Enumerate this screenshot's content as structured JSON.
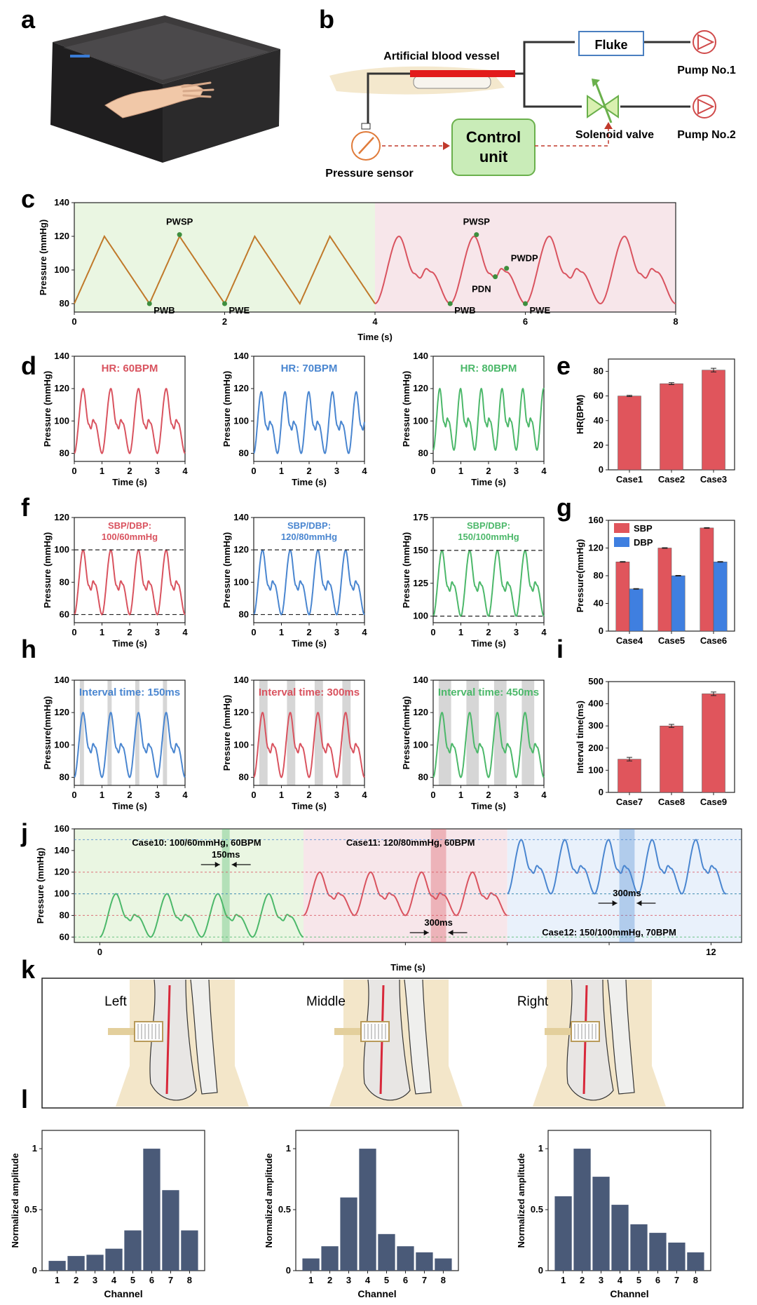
{
  "colors": {
    "red": "#d9535f",
    "blue": "#4a86d0",
    "green": "#4cb86a",
    "brown": "#c0792a",
    "bar_red": "#e0555c",
    "bar_blue": "#3f7fe0",
    "navy": "#4a5a78",
    "bg_green": "#eaf6e2",
    "bg_pink": "#f7e6ea",
    "bg_blue": "#e9f1fb",
    "bone": "#f1e2c0"
  },
  "panels": {
    "a": "a",
    "b": "b",
    "c": "c",
    "d": "d",
    "e": "e",
    "f": "f",
    "g": "g",
    "h": "h",
    "i": "i",
    "j": "j",
    "k": "k",
    "l": "l"
  },
  "schematic": {
    "vessel": "Artificial blood vessel",
    "fluke": "Fluke",
    "pump1": "Pump No.1",
    "pump2": "Pump No.2",
    "control1": "Control",
    "control2": "unit",
    "valve": "Solenoid valve",
    "sensor": "Pressure sensor"
  },
  "chart_data": [
    {
      "id": "c",
      "type": "line",
      "xlabel": "Time (s)",
      "ylabel": "Pressure (mmHg)",
      "xlim": [
        0,
        8
      ],
      "ylim": [
        75,
        140
      ],
      "xticks": [
        0,
        2,
        4,
        6,
        8
      ],
      "yticks": [
        80,
        100,
        120,
        140
      ],
      "series": [
        {
          "shape": "triangle",
          "x_start": 0,
          "x_end": 4,
          "period": 1,
          "min": 80,
          "max": 120
        },
        {
          "shape": "dicrotic",
          "x_start": 4,
          "x_end": 8,
          "period": 1,
          "min": 80,
          "max": 120
        }
      ],
      "annotations": [
        {
          "text": "PWSP",
          "x": 1.4,
          "y": 121
        },
        {
          "text": "PWB",
          "x": 1.0,
          "y": 80
        },
        {
          "text": "PWE",
          "x": 2.0,
          "y": 80
        },
        {
          "text": "PWSP",
          "x": 5.35,
          "y": 121
        },
        {
          "text": "PWB",
          "x": 5.0,
          "y": 80
        },
        {
          "text": "PDN",
          "x": 5.6,
          "y": 96
        },
        {
          "text": "PWDP",
          "x": 5.75,
          "y": 101
        },
        {
          "text": "PWE",
          "x": 6.0,
          "y": 80
        }
      ]
    },
    {
      "id": "d1",
      "type": "line",
      "title": "HR: 60BPM",
      "xlabel": "Time (s)",
      "ylabel": "Pressure (mmHg)",
      "xlim": [
        0,
        4
      ],
      "ylim": [
        75,
        140
      ],
      "xticks": [
        0,
        1,
        2,
        3,
        4
      ],
      "yticks": [
        80,
        100,
        120,
        140
      ],
      "series": [
        {
          "shape": "dicrotic",
          "period": 1,
          "min": 80,
          "max": 120
        }
      ]
    },
    {
      "id": "d2",
      "type": "line",
      "title": "HR: 70BPM",
      "xlabel": "Time (s)",
      "ylabel": "Pressure (mmHg)",
      "xlim": [
        0,
        4
      ],
      "ylim": [
        75,
        140
      ],
      "xticks": [
        0,
        1,
        2,
        3,
        4
      ],
      "yticks": [
        80,
        100,
        120,
        140
      ],
      "series": [
        {
          "shape": "dicrotic",
          "period": 0.857,
          "min": 80,
          "max": 118
        }
      ]
    },
    {
      "id": "d3",
      "type": "line",
      "title": "HR: 80BPM",
      "xlabel": "Time (s)",
      "ylabel": "Pressure (mmHg)",
      "xlim": [
        0,
        4
      ],
      "ylim": [
        75,
        140
      ],
      "xticks": [
        0,
        1,
        2,
        3,
        4
      ],
      "yticks": [
        80,
        100,
        120,
        140
      ],
      "series": [
        {
          "shape": "dicrotic",
          "period": 0.75,
          "min": 82,
          "max": 120
        }
      ]
    },
    {
      "id": "e",
      "type": "bar",
      "ylabel": "HR(BPM)",
      "categories": [
        "Case1",
        "Case2",
        "Case3"
      ],
      "series": [
        {
          "values": [
            60,
            70,
            81
          ],
          "errors": [
            0.5,
            0.8,
            1.5
          ]
        }
      ],
      "ylim": [
        0,
        90
      ],
      "yticks": [
        0,
        20,
        40,
        60,
        80
      ]
    },
    {
      "id": "f1",
      "type": "line",
      "title_lines": [
        "SBP/DBP:",
        "100/60mmHg"
      ],
      "xlabel": "Time (s)",
      "ylabel": "Pressure (mmHg)",
      "xlim": [
        0,
        4
      ],
      "ylim": [
        55,
        120
      ],
      "xticks": [
        0,
        1,
        2,
        3,
        4
      ],
      "yticks": [
        60,
        80,
        100,
        120
      ],
      "ref_lines": [
        100,
        60
      ],
      "series": [
        {
          "shape": "dicrotic",
          "period": 1,
          "min": 60,
          "max": 100
        }
      ]
    },
    {
      "id": "f2",
      "type": "line",
      "title_lines": [
        "SBP/DBP:",
        "120/80mmHg"
      ],
      "xlabel": "Time (s)",
      "ylabel": "Pressure (mmHg)",
      "xlim": [
        0,
        4
      ],
      "ylim": [
        75,
        140
      ],
      "xticks": [
        0,
        1,
        2,
        3,
        4
      ],
      "yticks": [
        80,
        100,
        120,
        140
      ],
      "ref_lines": [
        120,
        80
      ],
      "series": [
        {
          "shape": "dicrotic",
          "period": 1,
          "min": 80,
          "max": 120
        }
      ]
    },
    {
      "id": "f3",
      "type": "line",
      "title_lines": [
        "SBP/DBP:",
        "150/100mmHg"
      ],
      "xlabel": "Time (s)",
      "ylabel": "Pressure (mmHg)",
      "xlim": [
        0,
        4
      ],
      "ylim": [
        95,
        175
      ],
      "xticks": [
        0,
        1,
        2,
        3,
        4
      ],
      "yticks": [
        100,
        125,
        150,
        175
      ],
      "ref_lines": [
        150,
        100
      ],
      "series": [
        {
          "shape": "dicrotic",
          "period": 1,
          "min": 100,
          "max": 150
        }
      ]
    },
    {
      "id": "g",
      "type": "bar",
      "ylabel": "Pressure(mmHg)",
      "categories": [
        "Case4",
        "Case5",
        "Case6"
      ],
      "series": [
        {
          "name": "SBP",
          "values": [
            100,
            120,
            149
          ],
          "errors": [
            0.5,
            0.5,
            0.5
          ]
        },
        {
          "name": "DBP",
          "values": [
            61,
            80,
            100
          ],
          "errors": [
            0.5,
            0.5,
            0.5
          ]
        }
      ],
      "ylim": [
        0,
        160
      ],
      "yticks": [
        0,
        40,
        80,
        120,
        160
      ],
      "legend": "top-left"
    },
    {
      "id": "h1",
      "type": "line",
      "title": "Interval time: 150ms",
      "xlabel": "Time (s)",
      "ylabel": "Pressure(mmHg)",
      "xlim": [
        0,
        4
      ],
      "ylim": [
        75,
        140
      ],
      "xticks": [
        0,
        1,
        2,
        3,
        4
      ],
      "yticks": [
        80,
        100,
        120,
        140
      ],
      "interval_s": 0.15,
      "series": [
        {
          "shape": "dicrotic",
          "period": 1,
          "min": 80,
          "max": 120
        }
      ]
    },
    {
      "id": "h2",
      "type": "line",
      "title": "Interval time: 300ms",
      "xlabel": "Time (s)",
      "ylabel": "Pressure (mmHg)",
      "xlim": [
        0,
        4
      ],
      "ylim": [
        75,
        140
      ],
      "xticks": [
        0,
        1,
        2,
        3,
        4
      ],
      "yticks": [
        80,
        100,
        120,
        140
      ],
      "interval_s": 0.3,
      "series": [
        {
          "shape": "dicrotic",
          "period": 1,
          "min": 80,
          "max": 120
        }
      ]
    },
    {
      "id": "h3",
      "type": "line",
      "title": "Interval time: 450ms",
      "xlabel": "Time (s)",
      "ylabel": "Pressure(mmHg)",
      "xlim": [
        0,
        4
      ],
      "ylim": [
        75,
        140
      ],
      "xticks": [
        0,
        1,
        2,
        3,
        4
      ],
      "yticks": [
        80,
        100,
        120,
        140
      ],
      "interval_s": 0.45,
      "series": [
        {
          "shape": "dicrotic",
          "period": 1,
          "min": 80,
          "max": 120
        }
      ]
    },
    {
      "id": "i",
      "type": "bar",
      "ylabel": "Interval time(ms)",
      "categories": [
        "Case7",
        "Case8",
        "Case9"
      ],
      "series": [
        {
          "values": [
            150,
            300,
            445
          ],
          "errors": [
            8,
            7,
            8
          ]
        }
      ],
      "ylim": [
        0,
        500
      ],
      "yticks": [
        0,
        100,
        200,
        300,
        400,
        500
      ]
    },
    {
      "id": "j",
      "type": "line",
      "xlabel": "Time (s)",
      "ylabel": "Pressure (mmHg)",
      "xlim": [
        -0.5,
        12.6
      ],
      "ylim": [
        55,
        160
      ],
      "xticks": [
        0,
        2,
        4,
        6,
        8,
        10,
        12
      ],
      "xtick_labels": [
        "0",
        "",
        "",
        "",
        "",
        "",
        "12"
      ],
      "yticks": [
        60,
        80,
        100,
        120,
        140,
        160
      ],
      "segments": [
        {
          "x_start": 0,
          "x_end": 4,
          "period": 1,
          "min": 60,
          "max": 100,
          "interval_ms": 150,
          "marker_x": 2.4
        },
        {
          "x_start": 4,
          "x_end": 8,
          "period": 1,
          "min": 80,
          "max": 120,
          "interval_ms": 300,
          "marker_x": 6.5
        },
        {
          "x_start": 8,
          "x_end": 12.3,
          "period": 0.857,
          "min": 100,
          "max": 150,
          "interval_ms": 300,
          "marker_x": 10.2
        }
      ],
      "annotations": [
        "Case10: 100/60mmHg, 60BPM",
        "Case11: 120/80mmHg, 60BPM",
        "Case12: 150/100mmHg, 70BPM",
        "150ms",
        "300ms",
        "300ms"
      ]
    },
    {
      "id": "l1",
      "type": "bar",
      "xlabel": "Channel",
      "ylabel": "Normalized amplitude",
      "categories": [
        "1",
        "2",
        "3",
        "4",
        "5",
        "6",
        "7",
        "8"
      ],
      "values": [
        0.08,
        0.12,
        0.13,
        0.18,
        0.33,
        1.0,
        0.66,
        0.33
      ],
      "ylim": [
        0,
        1.15
      ],
      "yticks": [
        0,
        0.5,
        1.0
      ]
    },
    {
      "id": "l2",
      "type": "bar",
      "xlabel": "Channel",
      "ylabel": "Normalized amplitude",
      "categories": [
        "1",
        "2",
        "3",
        "4",
        "5",
        "6",
        "7",
        "8"
      ],
      "values": [
        0.1,
        0.2,
        0.6,
        1.0,
        0.3,
        0.2,
        0.15,
        0.1
      ],
      "ylim": [
        0,
        1.15
      ],
      "yticks": [
        0,
        0.5,
        1.0
      ]
    },
    {
      "id": "l3",
      "type": "bar",
      "xlabel": "Channel",
      "ylabel": "Normalized amplitude",
      "categories": [
        "1",
        "2",
        "3",
        "4",
        "5",
        "6",
        "7",
        "8"
      ],
      "values": [
        0.61,
        1.0,
        0.77,
        0.54,
        0.38,
        0.31,
        0.23,
        0.15
      ],
      "ylim": [
        0,
        1.15
      ],
      "yticks": [
        0,
        0.5,
        1.0
      ]
    }
  ],
  "anatomy": {
    "left": "Left",
    "middle": "Middle",
    "right": "Right"
  }
}
